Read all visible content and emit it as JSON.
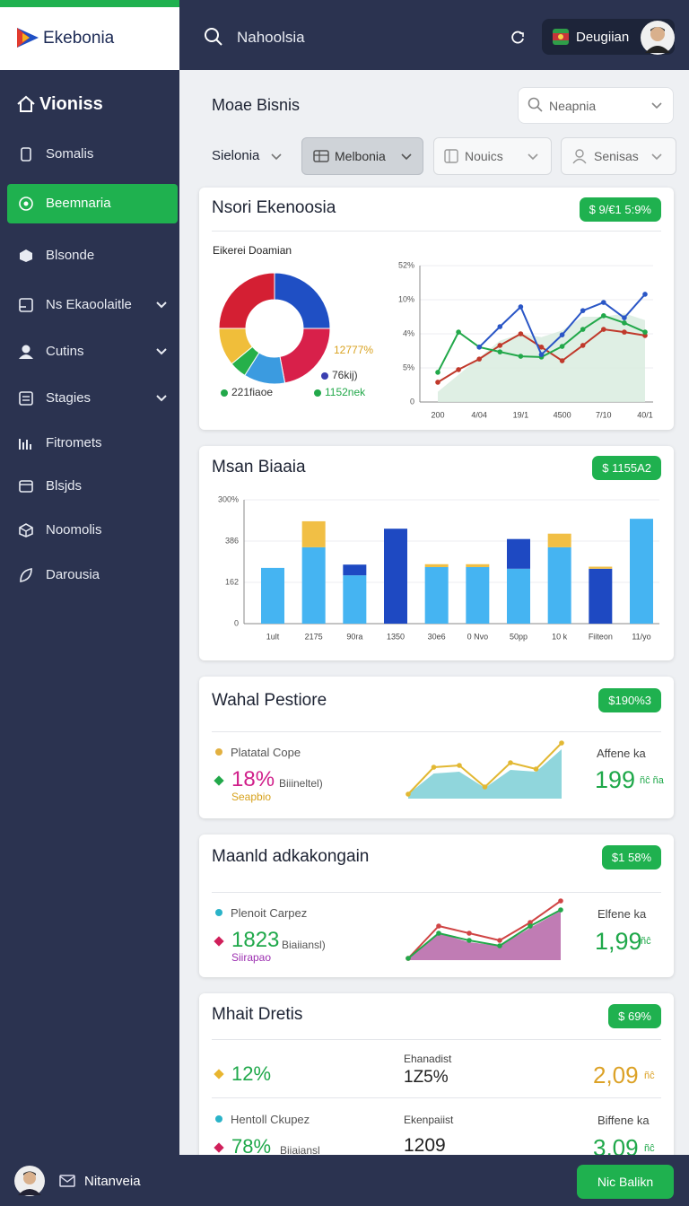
{
  "header": {
    "brand": "Ekebonia",
    "search": "Nahoolsia",
    "user": "Deugiian"
  },
  "sidebar": {
    "title": "Vioniss",
    "active": 1,
    "items": [
      "Somalis",
      "Beemnaria",
      "Blsonde",
      "Ns Ekaoolaitle",
      "Cutins",
      "Stagies",
      "Fitromets",
      "Blsjds",
      "Noomolis",
      "Darousia"
    ]
  },
  "page": {
    "title": "Moae Bisnis",
    "search": "Neapnia",
    "filters": [
      "Sielonia",
      "Melbonia",
      "Nouics",
      "Senisas"
    ]
  },
  "cards": [
    {
      "title": "Nsori Ekenoosia",
      "badge": "$ 9/€1 5:9%"
    },
    {
      "title": "Msan Biaaia",
      "badge": "$ 1155A2"
    },
    {
      "title": "Wahal Pestiore",
      "badge": "$190%3"
    },
    {
      "title": "Maanld adkakongain",
      "badge": "$1 58%"
    },
    {
      "title": "Mhait Dretis",
      "badge": "$ 69%"
    }
  ],
  "kpis": [
    {
      "legend": "Platatal Cope",
      "value": "18%",
      "note": "Biiineltel)",
      "sub": "Seapbio",
      "side_label": "Affene ka",
      "side_value": "199",
      "side_unit": "ñĉ ña"
    },
    {
      "legend": "Plenoit Carpez",
      "value": "1823",
      "note": "Biaiiansl)",
      "sub": "Siirapao",
      "side_label": "Elfene ka",
      "side_value": "1,99",
      "side_unit": "ñĉ"
    }
  ],
  "details": [
    {
      "value": "12%",
      "mid_label": "Ehanadist",
      "mid_value": "1Z5%",
      "side_value": "2,09",
      "side_unit": "ñĉ"
    },
    {
      "legend": "Hentoll Ckupez",
      "value": "78%",
      "note": "Biiaiansl",
      "mid_label": "Ekenpaiist",
      "mid_value": "1209",
      "side_label": "Biffene ka",
      "side_value": "3,09",
      "side_unit": "ñĉ"
    }
  ],
  "footer": {
    "user": "Nitanveia",
    "button": "Nic Balikn"
  },
  "chart_data": [
    {
      "type": "pie",
      "title": "Eikerei Doamian",
      "donut": true,
      "values": [
        25,
        22,
        12,
        5,
        11,
        25
      ],
      "colors": [
        "#1f4fc4",
        "#d8204a",
        "#3b9be0",
        "#26b04a",
        "#f0be3a",
        "#d41f33"
      ],
      "annotations": [
        {
          "text": "12777%",
          "color": "#d9a21f"
        },
        {
          "text": "76kij)",
          "dot": "#3a3fb0"
        },
        {
          "text": "221fiaoe",
          "dot": "#22a84a"
        },
        {
          "text": "1152nek",
          "dot": "#22a84a",
          "color": "#22a84a"
        }
      ]
    },
    {
      "type": "line",
      "categories": [
        "200",
        null,
        "4/04",
        null,
        "19/1",
        null,
        "4500",
        null,
        "7/10",
        null,
        "40/1"
      ],
      "ylim": [
        0,
        4
      ],
      "yticks": [
        0,
        {
          "value": 1,
          "label": "5%"
        },
        {
          "value": 2,
          "label": "4%"
        },
        {
          "value": 3,
          "label": "10%"
        },
        {
          "value": 4,
          "label": "52%"
        }
      ],
      "grid": true,
      "series": [
        {
          "color": "#d9ecdf",
          "fill": true,
          "values": [
            0.3,
            0.8,
            1.3,
            1.8,
            2.0,
            1.9,
            2.1,
            2.5,
            2.5,
            2.6,
            2.4
          ]
        },
        {
          "color": "#c0392b",
          "markers": true,
          "values": [
            0.58,
            0.95,
            1.26,
            1.66,
            2.0,
            1.61,
            1.21,
            1.66,
            2.13,
            2.05,
            1.95
          ]
        },
        {
          "color": "#22a84a",
          "markers": true,
          "values": [
            0.87,
            2.05,
            1.61,
            1.47,
            1.34,
            1.32,
            1.63,
            2.13,
            2.53,
            2.32,
            2.05
          ]
        },
        {
          "color": "#2a56c6",
          "markers": true,
          "values": [
            null,
            null,
            1.61,
            2.21,
            2.79,
            1.39,
            1.97,
            2.68,
            2.92,
            2.47,
            3.16
          ]
        }
      ]
    },
    {
      "type": "bar",
      "stacked": true,
      "categories": [
        "1ult",
        "2175",
        "90ra",
        "1350",
        "30e6",
        "0 Nvo",
        "50pp",
        "10 k",
        "Fiiteon",
        "11/yo"
      ],
      "ylim": [
        0,
        3
      ],
      "yticks": [
        0,
        {
          "value": 1,
          "label": "162"
        },
        {
          "value": 2,
          "label": "386"
        },
        {
          "value": 3,
          "label": "300%"
        }
      ],
      "grid": true,
      "series": [
        {
          "color": "#45b4f2",
          "values": [
            1.35,
            1.85,
            1.17,
            0,
            1.37,
            1.37,
            1.33,
            1.85,
            0,
            2.54
          ]
        },
        {
          "color": "#1e49c2",
          "values": [
            0,
            0,
            0.26,
            2.3,
            0,
            0,
            0.72,
            0,
            1.33,
            0
          ]
        },
        {
          "color": "#f1bf45",
          "values": [
            0,
            0.63,
            0,
            0,
            0.07,
            0.07,
            0,
            0.33,
            0.05,
            0
          ]
        }
      ]
    },
    {
      "type": "sparkline",
      "ylim": [
        0,
        70
      ],
      "series": [
        {
          "color": "#7ccfd6",
          "fill": true,
          "values": [
            5,
            28,
            30,
            12,
            32,
            30,
            55
          ]
        },
        {
          "color": "#e2b833",
          "markers": true,
          "values": [
            5,
            35,
            37,
            13,
            40,
            33,
            62
          ]
        }
      ]
    },
    {
      "type": "sparkline",
      "ylim": [
        0,
        70
      ],
      "series": [
        {
          "color": "#b565a7",
          "fill": true,
          "values": [
            2,
            30,
            20,
            16,
            36,
            55
          ]
        },
        {
          "color": "#d04545",
          "markers": true,
          "values": [
            2,
            38,
            30,
            22,
            42,
            66
          ]
        },
        {
          "color": "#22a84a",
          "markers": true,
          "values": [
            2,
            30,
            22,
            16,
            38,
            56
          ]
        }
      ]
    }
  ]
}
